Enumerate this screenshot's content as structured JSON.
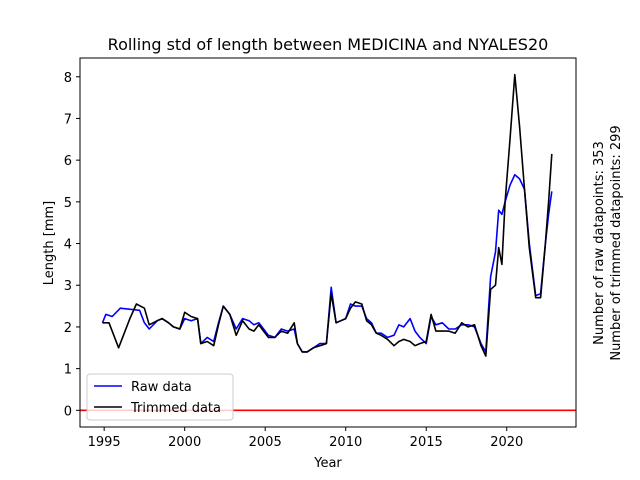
{
  "chart_data": {
    "type": "line",
    "title": "Rolling std of length between MEDICINA and NYALES20",
    "xlabel": "Year",
    "ylabel": "Length [mm]",
    "xlim": [
      1993.5,
      2024.3
    ],
    "ylim": [
      -0.4,
      8.45
    ],
    "xticks": [
      1995,
      2000,
      2005,
      2010,
      2015,
      2020
    ],
    "yticks": [
      0,
      1,
      2,
      3,
      4,
      5,
      6,
      7,
      8
    ],
    "grid": false,
    "legend": "lower-left",
    "notes": [
      "Number of raw datapoints: 353",
      "Number of trimmed datapoints: 299"
    ],
    "reference_line": {
      "y": 0,
      "color": "#ff0000"
    },
    "series": [
      {
        "name": "Raw data",
        "color": "#0000ff",
        "x": [
          1994.9,
          1995.1,
          1995.5,
          1996.0,
          1997.2,
          1997.5,
          1997.8,
          1998.3,
          1998.6,
          1999.0,
          1999.3,
          1999.7,
          2000.0,
          2000.4,
          2000.8,
          2001.0,
          2001.4,
          2001.8,
          2002.1,
          2002.4,
          2002.8,
          2003.2,
          2003.6,
          2004.0,
          2004.3,
          2004.6,
          2004.9,
          2005.2,
          2005.6,
          2006.0,
          2006.4,
          2006.8,
          2007.0,
          2007.3,
          2007.6,
          2008.0,
          2008.4,
          2008.8,
          2009.1,
          2009.4,
          2009.7,
          2010.0,
          2010.3,
          2010.6,
          2011.0,
          2011.3,
          2011.6,
          2011.9,
          2012.2,
          2012.6,
          2013.0,
          2013.3,
          2013.6,
          2014.0,
          2014.3,
          2014.6,
          2015.0,
          2015.3,
          2015.6,
          2016.0,
          2016.4,
          2016.8,
          2017.2,
          2017.6,
          2018.0,
          2018.4,
          2018.7,
          2019.0,
          2019.3,
          2019.5,
          2019.7,
          2019.9,
          2020.2,
          2020.5,
          2020.8,
          2021.1,
          2021.4,
          2021.8,
          2022.1,
          2022.4,
          2022.6,
          2022.8
        ],
        "y": [
          2.1,
          2.3,
          2.25,
          2.45,
          2.4,
          2.1,
          1.95,
          2.15,
          2.2,
          2.1,
          2.0,
          1.95,
          2.2,
          2.15,
          2.2,
          1.6,
          1.75,
          1.65,
          2.1,
          2.5,
          2.3,
          1.95,
          2.2,
          2.15,
          2.05,
          2.1,
          1.95,
          1.8,
          1.75,
          1.95,
          1.9,
          1.95,
          1.6,
          1.4,
          1.4,
          1.5,
          1.6,
          1.6,
          2.95,
          2.1,
          2.15,
          2.2,
          2.55,
          2.5,
          2.5,
          2.2,
          2.1,
          1.85,
          1.85,
          1.75,
          1.8,
          2.05,
          2.0,
          2.2,
          1.9,
          1.75,
          1.6,
          2.25,
          2.05,
          2.1,
          1.95,
          1.95,
          2.05,
          2.05,
          2.0,
          1.6,
          1.4,
          3.2,
          3.8,
          4.8,
          4.7,
          5.0,
          5.4,
          5.65,
          5.55,
          5.3,
          4.0,
          2.75,
          2.8,
          4.0,
          4.7,
          5.25
        ]
      },
      {
        "name": "Trimmed data",
        "color": "#000000",
        "x": [
          1994.9,
          1995.3,
          1995.9,
          1996.6,
          1997.0,
          1997.5,
          1997.8,
          1998.3,
          1998.6,
          1999.0,
          1999.3,
          1999.7,
          2000.0,
          2000.4,
          2000.8,
          2001.0,
          2001.4,
          2001.8,
          2002.1,
          2002.4,
          2002.8,
          2003.2,
          2003.6,
          2004.0,
          2004.3,
          2004.6,
          2004.9,
          2005.2,
          2005.6,
          2006.0,
          2006.4,
          2006.8,
          2007.0,
          2007.3,
          2007.6,
          2008.0,
          2008.4,
          2008.8,
          2009.1,
          2009.4,
          2009.7,
          2010.0,
          2010.3,
          2010.6,
          2011.0,
          2011.3,
          2011.6,
          2011.9,
          2012.2,
          2012.6,
          2013.0,
          2013.3,
          2013.6,
          2014.0,
          2014.3,
          2014.6,
          2015.0,
          2015.3,
          2015.6,
          2016.0,
          2016.4,
          2016.8,
          2017.2,
          2017.6,
          2018.0,
          2018.4,
          2018.7,
          2019.0,
          2019.3,
          2019.5,
          2019.7,
          2019.9,
          2020.2,
          2020.5,
          2020.8,
          2021.1,
          2021.4,
          2021.8,
          2022.1,
          2022.4,
          2022.6,
          2022.8
        ],
        "y": [
          2.1,
          2.1,
          1.5,
          2.2,
          2.55,
          2.45,
          2.05,
          2.15,
          2.2,
          2.1,
          2.0,
          1.95,
          2.35,
          2.25,
          2.2,
          1.6,
          1.65,
          1.55,
          2.05,
          2.5,
          2.3,
          1.8,
          2.15,
          1.95,
          1.9,
          2.05,
          1.9,
          1.75,
          1.75,
          1.9,
          1.85,
          2.1,
          1.6,
          1.4,
          1.4,
          1.5,
          1.55,
          1.6,
          2.8,
          2.1,
          2.15,
          2.2,
          2.45,
          2.6,
          2.55,
          2.15,
          2.05,
          1.85,
          1.8,
          1.7,
          1.55,
          1.65,
          1.7,
          1.65,
          1.55,
          1.6,
          1.65,
          2.3,
          1.9,
          1.9,
          1.9,
          1.85,
          2.1,
          2.0,
          2.05,
          1.55,
          1.3,
          2.9,
          3.0,
          3.9,
          3.5,
          5.0,
          6.5,
          8.05,
          6.8,
          5.3,
          3.9,
          2.7,
          2.7,
          4.0,
          5.0,
          6.15
        ]
      }
    ]
  }
}
